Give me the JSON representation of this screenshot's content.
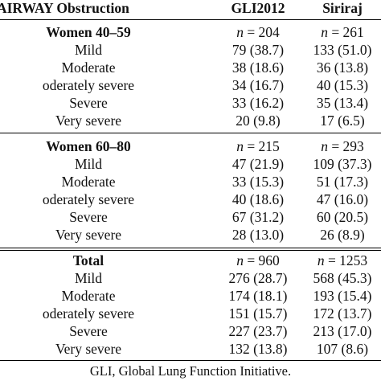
{
  "header": {
    "col0": "of AIRWAY Obstruction",
    "col1": "GLI2012",
    "col2": "Siriraj"
  },
  "groups": [
    {
      "title": "Women 40–59",
      "n_label": "n",
      "gli_n": "= 204",
      "siriraj_n": "= 261",
      "rows": [
        {
          "label": "Mild",
          "gli": "79 (38.7)",
          "siriraj": "133 (51.0)"
        },
        {
          "label": "Moderate",
          "gli": "38 (18.6)",
          "siriraj": "36 (13.8)"
        },
        {
          "label": "oderately severe",
          "gli": "34 (16.7)",
          "siriraj": "40 (15.3)"
        },
        {
          "label": "Severe",
          "gli": "33 (16.2)",
          "siriraj": "35 (13.4)"
        },
        {
          "label": "Very severe",
          "gli": "20 (9.8)",
          "siriraj": "17 (6.5)"
        }
      ]
    },
    {
      "title": "Women 60–80",
      "n_label": "n",
      "gli_n": "= 215",
      "siriraj_n": "= 293",
      "rows": [
        {
          "label": "Mild",
          "gli": "47 (21.9)",
          "siriraj": "109 (37.3)"
        },
        {
          "label": "Moderate",
          "gli": "33 (15.3)",
          "siriraj": "51 (17.3)"
        },
        {
          "label": "oderately severe",
          "gli": "40 (18.6)",
          "siriraj": "47 (16.0)"
        },
        {
          "label": "Severe",
          "gli": "67 (31.2)",
          "siriraj": "60 (20.5)"
        },
        {
          "label": "Very severe",
          "gli": "28 (13.0)",
          "siriraj": "26 (8.9)"
        }
      ]
    },
    {
      "title": "Total",
      "n_label": "n",
      "gli_n": "= 960",
      "siriraj_n": "= 1253",
      "rows": [
        {
          "label": "Mild",
          "gli": "276 (28.7)",
          "siriraj": "568 (45.3)"
        },
        {
          "label": "Moderate",
          "gli": "174 (18.1)",
          "siriraj": "193 (15.4)"
        },
        {
          "label": "oderately severe",
          "gli": "151 (15.7)",
          "siriraj": "172 (13.7)"
        },
        {
          "label": "Severe",
          "gli": "227 (23.7)",
          "siriraj": "213 (17.0)"
        },
        {
          "label": "Very severe",
          "gli": "132 (13.8)",
          "siriraj": "107 (8.6)"
        }
      ]
    }
  ],
  "footnote": "GLI, Global Lung Function Initiative."
}
